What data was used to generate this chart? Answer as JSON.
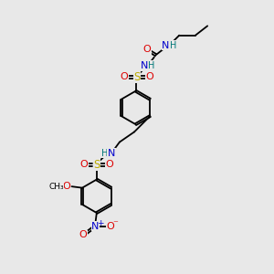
{
  "background_color": "#e8e8e8",
  "figsize": [
    3.0,
    3.0
  ],
  "dpi": 100,
  "atom_colors": {
    "C": "#000000",
    "N": "#0000cc",
    "O": "#dd0000",
    "S": "#bbaa00",
    "H": "#007777"
  },
  "bond_color": "#000000",
  "bond_lw": 1.3
}
